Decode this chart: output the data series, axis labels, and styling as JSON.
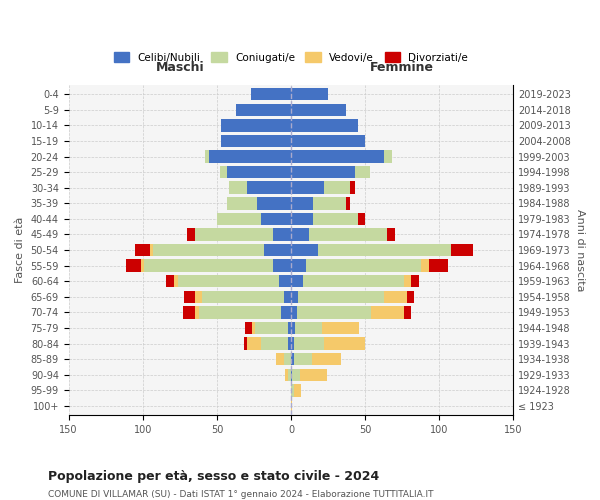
{
  "age_groups": [
    "100+",
    "95-99",
    "90-94",
    "85-89",
    "80-84",
    "75-79",
    "70-74",
    "65-69",
    "60-64",
    "55-59",
    "50-54",
    "45-49",
    "40-44",
    "35-39",
    "30-34",
    "25-29",
    "20-24",
    "15-19",
    "10-14",
    "5-9",
    "0-4"
  ],
  "birth_years": [
    "≤ 1923",
    "1924-1928",
    "1929-1933",
    "1934-1938",
    "1939-1943",
    "1944-1948",
    "1949-1953",
    "1954-1958",
    "1959-1963",
    "1964-1968",
    "1969-1973",
    "1974-1978",
    "1979-1983",
    "1984-1988",
    "1989-1993",
    "1994-1998",
    "1999-2003",
    "2004-2008",
    "2009-2013",
    "2014-2018",
    "2019-2023"
  ],
  "colors": {
    "celibe": "#4472c4",
    "coniugato": "#c5d9a0",
    "vedovo": "#f5c96a",
    "divorziato": "#cc0000"
  },
  "maschi": {
    "celibe": [
      0,
      0,
      0,
      0,
      2,
      2,
      7,
      5,
      8,
      12,
      18,
      12,
      20,
      23,
      30,
      43,
      55,
      47,
      47,
      37,
      27
    ],
    "coniugato": [
      0,
      0,
      2,
      5,
      18,
      22,
      55,
      55,
      68,
      87,
      75,
      53,
      30,
      20,
      12,
      5,
      3,
      0,
      0,
      0,
      0
    ],
    "vedovo": [
      0,
      0,
      2,
      5,
      10,
      2,
      3,
      5,
      3,
      2,
      2,
      0,
      0,
      0,
      0,
      0,
      0,
      0,
      0,
      0,
      0
    ],
    "divorziato": [
      0,
      0,
      0,
      0,
      2,
      5,
      8,
      7,
      5,
      10,
      10,
      5,
      0,
      0,
      0,
      0,
      0,
      0,
      0,
      0,
      0
    ]
  },
  "femmine": {
    "nubile": [
      0,
      0,
      1,
      2,
      2,
      3,
      4,
      5,
      8,
      10,
      18,
      12,
      15,
      15,
      22,
      43,
      63,
      50,
      45,
      37,
      25
    ],
    "coniugata": [
      0,
      2,
      5,
      12,
      20,
      18,
      50,
      58,
      68,
      78,
      90,
      53,
      30,
      22,
      18,
      10,
      5,
      0,
      0,
      0,
      0
    ],
    "vedova": [
      1,
      5,
      18,
      20,
      28,
      25,
      22,
      15,
      5,
      5,
      0,
      0,
      0,
      0,
      0,
      0,
      0,
      0,
      0,
      0,
      0
    ],
    "divorziata": [
      0,
      0,
      0,
      0,
      0,
      0,
      5,
      5,
      5,
      13,
      15,
      5,
      5,
      3,
      3,
      0,
      0,
      0,
      0,
      0,
      0
    ]
  },
  "title": "Popolazione per età, sesso e stato civile - 2024",
  "subtitle": "COMUNE DI VILLAMAR (SU) - Dati ISTAT 1° gennaio 2024 - Elaborazione TUTTITALIA.IT",
  "xlabel_left": "Maschi",
  "xlabel_right": "Femmine",
  "ylabel_left": "Fasce di età",
  "ylabel_right": "Anni di nascita",
  "xlim": 150,
  "legend_labels": [
    "Celibi/Nubili",
    "Coniugati/e",
    "Vedovi/e",
    "Divorziati/e"
  ],
  "bg_color": "#ffffff"
}
